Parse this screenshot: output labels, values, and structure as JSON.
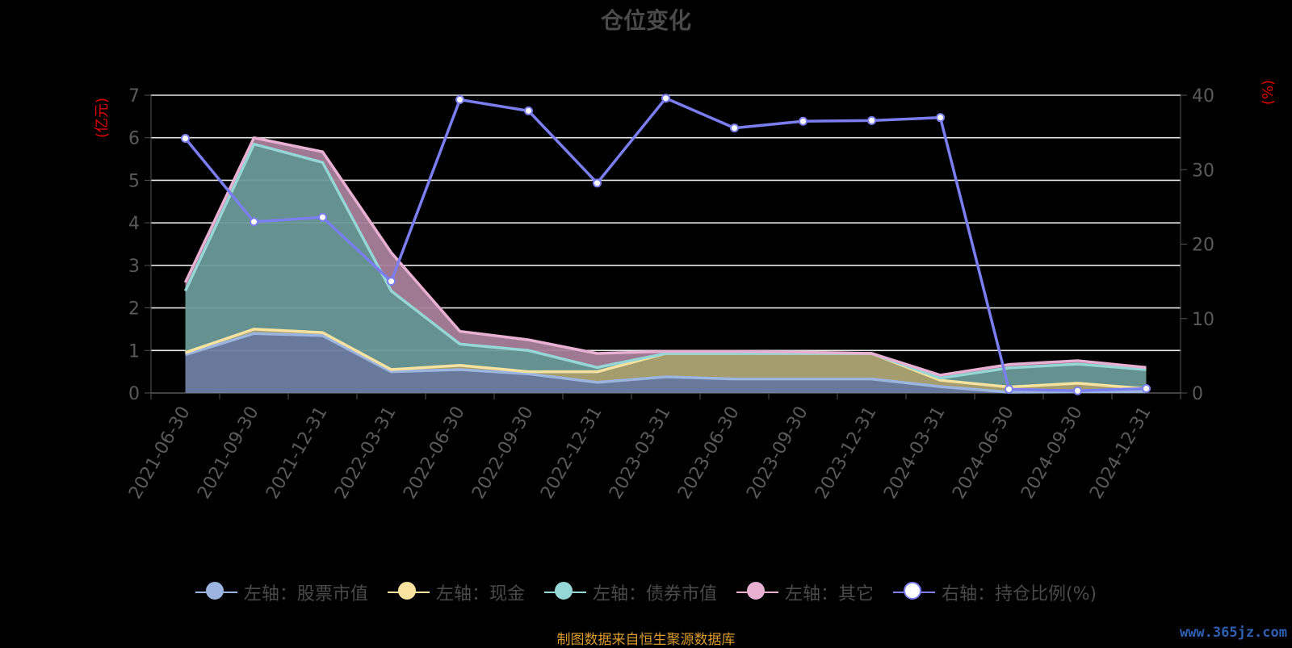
{
  "title": "仓位变化",
  "left_axis_unit": "(亿元)",
  "right_axis_unit": "(%)",
  "footer": "制图数据来自恒生聚源数据库",
  "watermark": "www.365jz.com",
  "legend": [
    {
      "label": "左轴：股票市值",
      "color": "#9bb5e0",
      "fill": "#9bb5e0"
    },
    {
      "label": "左轴：现金",
      "color": "#f7e39f",
      "fill": "#f7e39f"
    },
    {
      "label": "左轴：债券市值",
      "color": "#95d6d6",
      "fill": "#95d6d6"
    },
    {
      "label": "左轴：其它",
      "color": "#e8b0d2",
      "fill": "#e8b0d2"
    },
    {
      "label": "右轴：持仓比例(%)",
      "color": "#7b7ef0",
      "fill": "#ffffff"
    }
  ],
  "chart_data": {
    "type": "area",
    "title": "仓位变化",
    "categories": [
      "2021-06-30",
      "2021-09-30",
      "2021-12-31",
      "2022-03-31",
      "2022-06-30",
      "2022-09-30",
      "2022-12-31",
      "2023-03-31",
      "2023-06-30",
      "2023-09-30",
      "2023-12-31",
      "2024-03-31",
      "2024-06-30",
      "2024-09-30",
      "2024-12-31"
    ],
    "left_axis": {
      "label": "(亿元)",
      "ylim": [
        0,
        7
      ],
      "ticks": [
        0,
        1,
        2,
        3,
        4,
        5,
        6,
        7
      ]
    },
    "right_axis": {
      "label": "(%)",
      "ylim": [
        0,
        40
      ],
      "ticks": [
        0,
        10,
        20,
        30,
        40
      ]
    },
    "grid": true,
    "legend_position": "bottom",
    "stack_series": [
      {
        "name": "左轴：股票市值",
        "axis": "left",
        "color": "#9bb5e0",
        "values": [
          0.9,
          1.4,
          1.35,
          0.5,
          0.55,
          0.45,
          0.25,
          0.38,
          0.33,
          0.33,
          0.33,
          0.15,
          0.02,
          0.03,
          0.03
        ]
      },
      {
        "name": "左轴：现金",
        "axis": "left",
        "color": "#f7e39f",
        "values": [
          0.05,
          0.1,
          0.07,
          0.05,
          0.1,
          0.05,
          0.25,
          0.55,
          0.6,
          0.6,
          0.6,
          0.15,
          0.12,
          0.2,
          0.07
        ]
      },
      {
        "name": "左轴：债券市值",
        "axis": "left",
        "color": "#95d6d6",
        "values": [
          1.45,
          4.35,
          4.0,
          1.85,
          0.5,
          0.5,
          0.1,
          0.0,
          0.0,
          0.0,
          0.0,
          0.05,
          0.45,
          0.45,
          0.45
        ]
      },
      {
        "name": "左轴：其它",
        "axis": "left",
        "color": "#e8b0d2",
        "values": [
          0.2,
          0.15,
          0.25,
          0.9,
          0.3,
          0.25,
          0.33,
          0.05,
          0.05,
          0.03,
          0.0,
          0.07,
          0.08,
          0.08,
          0.05
        ]
      }
    ],
    "line_series": {
      "name": "右轴：持仓比例(%)",
      "axis": "right",
      "color": "#7b7ef0",
      "values": [
        34.2,
        23.0,
        23.6,
        15.0,
        39.4,
        37.9,
        28.2,
        39.6,
        35.6,
        36.5,
        36.6,
        37.0,
        0.5,
        0.3,
        0.6
      ]
    }
  }
}
